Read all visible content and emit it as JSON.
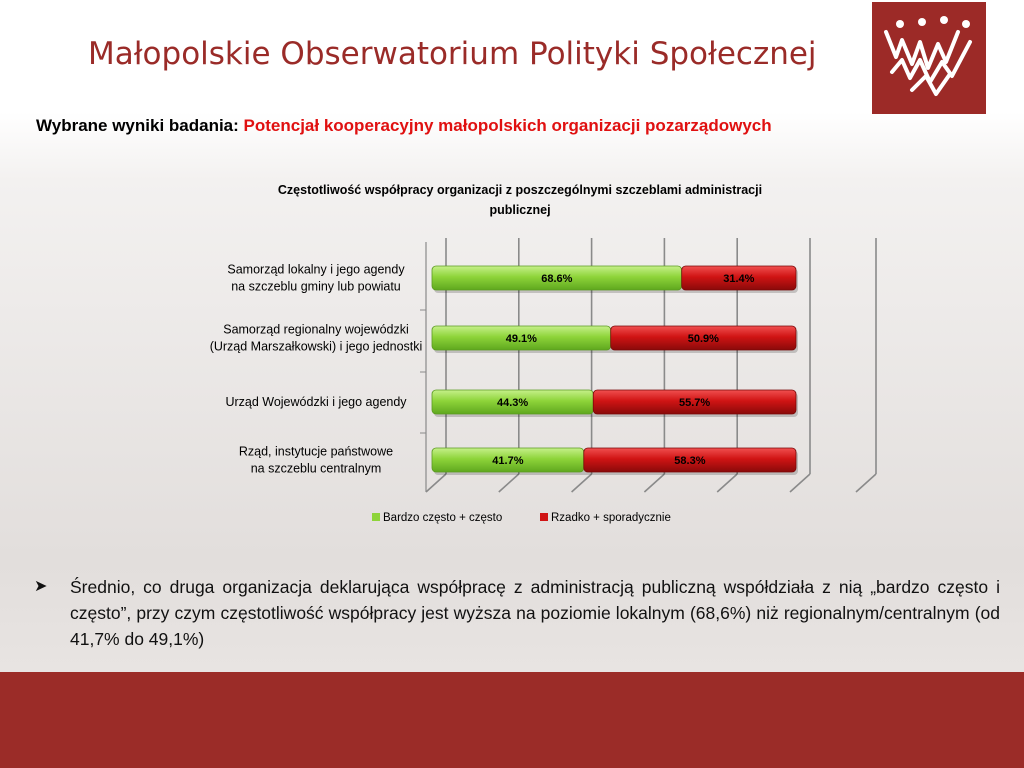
{
  "header": {
    "title": "Małopolskie Obserwatorium Polityki Społecznej"
  },
  "subtitle": {
    "lead": "Wybrane wyniki badania:",
    "highlight": "Potencjał kooperacyjny małopolskich organizacji pozarządowych"
  },
  "colors": {
    "brand": "#9b2c28",
    "highlight": "#e01010",
    "green": "#8ed43a",
    "red": "#d01414"
  },
  "chart_data": {
    "type": "bar",
    "orientation": "horizontal",
    "stacked": true,
    "title": "Częstotliwość współpracy organizacji z poszczególnymi szczeblami administracji publicznej",
    "title_lines": [
      "Częstotliwość współpracy organizacji z poszczególnymi szczeblami administracji",
      "publicznej"
    ],
    "categories": [
      [
        "Samorząd lokalny i jego agendy",
        "na szczeblu gminy lub powiatu"
      ],
      [
        "Samorząd regionalny wojewódzki",
        "(Urząd Marszałkowski) i jego jednostki"
      ],
      [
        "Urząd Wojewódzki i jego agendy"
      ],
      [
        "Rząd, instytucje państwowe",
        "na szczeblu centralnym"
      ]
    ],
    "series": [
      {
        "name": "Bardzo często + często",
        "values": [
          68.6,
          49.1,
          44.3,
          41.7
        ],
        "labels": [
          "68.6%",
          "49.1%",
          "44.3%",
          "41.7%"
        ],
        "color": "#8ed43a"
      },
      {
        "name": "Rzadko + sporadycznie",
        "values": [
          31.4,
          50.9,
          55.7,
          58.3
        ],
        "labels": [
          "31.4%",
          "50.9%",
          "55.7%",
          "58.3%"
        ],
        "color": "#d01414"
      }
    ],
    "xlim": [
      0,
      100
    ],
    "grid": true,
    "legend": "bottom"
  },
  "bullet": {
    "text": "Średnio, co druga organizacja deklarująca współpracę z administracją publiczną współdziała z nią „bardzo często i często”, przy czym częstotliwość współpracy jest wyższa na poziomie lokalnym (68,6%) niż regionalnym/centralnym (od 41,7% do 49,1%)"
  }
}
